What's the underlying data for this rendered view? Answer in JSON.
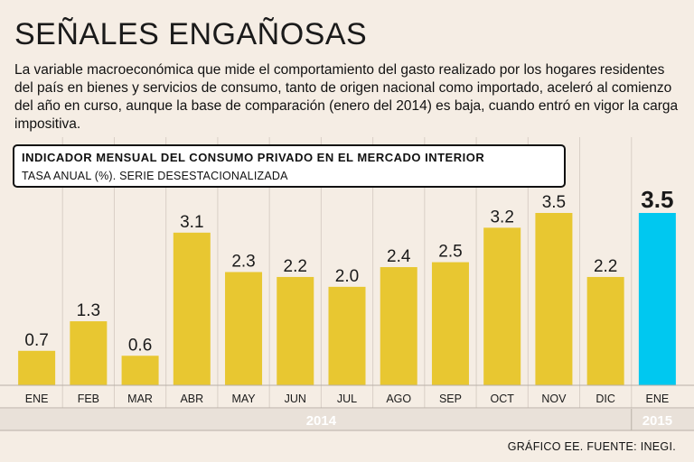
{
  "title": "SEÑALES ENGAÑOSAS",
  "description": "La variable macroeconómica que mide el comportamiento del gasto realizado por los hogares residentes del país en bienes y servicios de consumo, tanto de origen nacional como importado, aceleró al comienzo del año en curso, aunque la base de comparación (enero del 2014) es baja, cuando entró en vigor la carga impositiva.",
  "source": "GRÁFICO EE. FUENTE: INEGI.",
  "colors": {
    "background": "#f5ede4",
    "bar": "#e8c731",
    "highlight": "#00c8f0",
    "grid": "#d8cfc6",
    "year_band": "#e9e1d9",
    "year_text": "#ffffff"
  },
  "chart_data": {
    "type": "bar",
    "title": "INDICADOR MENSUAL DEL CONSUMO PRIVADO EN EL MERCADO INTERIOR",
    "subtitle": "TASA ANUAL (%). SERIE DESESTACIONALIZADA",
    "categories": [
      "ENE",
      "FEB",
      "MAR",
      "ABR",
      "MAY",
      "JUN",
      "JUL",
      "AGO",
      "SEP",
      "OCT",
      "NOV",
      "DIC",
      "ENE"
    ],
    "values": [
      0.7,
      1.3,
      0.6,
      3.1,
      2.3,
      2.2,
      2.0,
      2.4,
      2.5,
      3.2,
      3.5,
      2.2,
      3.5
    ],
    "value_labels": [
      "0.7",
      "1.3",
      "0.6",
      "3.1",
      "2.3",
      "2.2",
      "2.0",
      "2.4",
      "2.5",
      "3.2",
      "3.5",
      "2.2",
      "3.5"
    ],
    "highlight_index": 12,
    "years": [
      {
        "label": "2014",
        "from": 0,
        "to": 11
      },
      {
        "label": "2015",
        "from": 12,
        "to": 12
      }
    ],
    "ylim": [
      0,
      3.8
    ],
    "grid": true
  }
}
